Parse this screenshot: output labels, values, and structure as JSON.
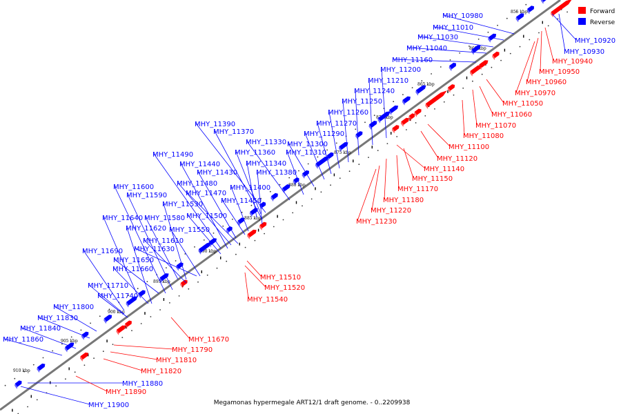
{
  "legend": [
    {
      "label": "Forward",
      "color": "#ff0000"
    },
    {
      "label": "Reverse",
      "color": "#0000ff"
    }
  ],
  "caption": "Megamonas hypermegale ART12/1 draft genome. - 0..2209938",
  "colors": {
    "forward": "#ff0000",
    "reverse": "#0000ff",
    "backbone": "#777777"
  },
  "ticks": [
    "855 kbp",
    "860 kbp",
    "865 kbp",
    "870 kbp",
    "875 kbp",
    "880 kbp",
    "885 kbp",
    "890 kbp",
    "895 kbp",
    "900 kbp",
    "905 kbp",
    "910 kbp"
  ],
  "reverse_labels": [
    "MHY_10980",
    "MHY_11010",
    "MHY_11030",
    "MHY_11040",
    "MHY_11160",
    "MHY_11200",
    "MHY_11210",
    "MHY_11240",
    "MHY_11250",
    "MHY_11260",
    "MHY_11270",
    "MHY_11290",
    "MHY_11300",
    "MHY_11330",
    "MHY_11310",
    "MHY_11390",
    "MHY_11370",
    "MHY_11360",
    "MHY_11340",
    "MHY_11380",
    "MHY_11490",
    "MHY_11440",
    "MHY_11430",
    "MHY_11480",
    "MHY_11400",
    "MHY_11470",
    "MHY_11600",
    "MHY_11590",
    "MHY_11530",
    "MHY_11450",
    "MHY_11640",
    "MHY_11580",
    "MHY_11500",
    "MHY_11620",
    "MHY_11550",
    "MHY_11610",
    "MHY_11690",
    "MHY_11630",
    "MHY_11650",
    "MHY_11660",
    "MHY_11710",
    "MHY_11740",
    "MHY_11800",
    "MHY_11830",
    "MHY_11840",
    "MHY_11860",
    "MHY_11880",
    "MHY_11900",
    "MHY_10920",
    "MHY_10930"
  ],
  "forward_labels": [
    "MHY_10940",
    "MHY_10950",
    "MHY_10960",
    "MHY_10970",
    "MHY_11050",
    "MHY_11060",
    "MHY_11070",
    "MHY_11080",
    "MHY_11100",
    "MHY_11120",
    "MHY_11140",
    "MHY_11150",
    "MHY_11170",
    "MHY_11180",
    "MHY_11220",
    "MHY_11230",
    "MHY_11510",
    "MHY_11520",
    "MHY_11540",
    "MHY_11670",
    "MHY_11790",
    "MHY_11810",
    "MHY_11820",
    "MHY_11890"
  ]
}
